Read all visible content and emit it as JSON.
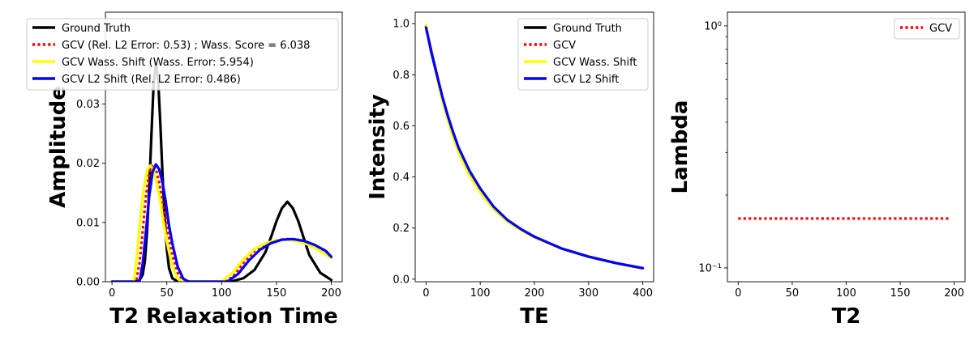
{
  "chart_data": [
    {
      "type": "line",
      "xlabel": "T2 Relaxation Time",
      "ylabel": "Amplitude",
      "xlim": [
        -6,
        210
      ],
      "ylim": [
        0,
        0.0455
      ],
      "xticks": [
        0,
        50,
        100,
        150,
        200
      ],
      "yticks": [
        0.0,
        0.01,
        0.02,
        0.03
      ],
      "ytick_labels": [
        "0.00",
        "0.01",
        "0.02",
        "0.03"
      ],
      "legend_position": "top-left",
      "series": [
        {
          "name": "Ground Truth",
          "color": "#000000",
          "style": "solid",
          "x": [
            0,
            20,
            25,
            28,
            30,
            32,
            34,
            36,
            38,
            40,
            42,
            44,
            46,
            48,
            50,
            52,
            55,
            60,
            65,
            70,
            80,
            100,
            110,
            120,
            130,
            140,
            145,
            150,
            155,
            160,
            165,
            170,
            175,
            180,
            190,
            200
          ],
          "y": [
            0,
            0,
            0.0002,
            0.0012,
            0.0035,
            0.0085,
            0.016,
            0.025,
            0.0335,
            0.037,
            0.0345,
            0.027,
            0.0185,
            0.011,
            0.0055,
            0.0023,
            0.0006,
            0,
            0,
            0,
            0,
            0,
            0.0001,
            0.0006,
            0.002,
            0.005,
            0.0075,
            0.0102,
            0.0124,
            0.0135,
            0.0124,
            0.0102,
            0.0073,
            0.0045,
            0.0015,
            0.0003
          ]
        },
        {
          "name": "GCV (Rel. L2 Error: 0.53) ; Wass. Score = 6.038",
          "color": "#ff0000",
          "style": "dotted",
          "x": [
            0,
            22,
            25,
            28,
            31,
            34,
            37,
            40,
            43,
            46,
            50,
            55,
            60,
            65,
            70,
            100,
            110,
            120,
            130,
            140,
            150,
            160,
            170,
            180,
            190,
            200
          ],
          "y": [
            0,
            0,
            0.003,
            0.0085,
            0.0145,
            0.0185,
            0.0198,
            0.019,
            0.0168,
            0.0135,
            0.0095,
            0.0045,
            0.0015,
            0.0002,
            0,
            0,
            0.0007,
            0.0032,
            0.0052,
            0.0064,
            0.007,
            0.0072,
            0.007,
            0.0064,
            0.0054,
            0.0042
          ]
        },
        {
          "name": "GCV Wass. Shift (Wass. Error: 5.954)",
          "color": "#ffff00",
          "style": "solid",
          "x": [
            0,
            20,
            23,
            26,
            29,
            32,
            35,
            38,
            41,
            44,
            47,
            50,
            55,
            60,
            63,
            100,
            110,
            120,
            130,
            140,
            150,
            160,
            170,
            180,
            190,
            200
          ],
          "y": [
            0,
            0,
            0.005,
            0.011,
            0.0158,
            0.0188,
            0.0196,
            0.0188,
            0.0165,
            0.0135,
            0.01,
            0.0068,
            0.0025,
            0.0005,
            0,
            0,
            0.0015,
            0.0038,
            0.0055,
            0.0065,
            0.007,
            0.0071,
            0.0068,
            0.0062,
            0.0052,
            0.004
          ]
        },
        {
          "name": "GCV L2 Shift (Rel. L2 Error: 0.486)",
          "color": "#0000ff",
          "style": "solid",
          "x": [
            0,
            25,
            28,
            31,
            34,
            37,
            40,
            43,
            46,
            49,
            52,
            55,
            60,
            65,
            70,
            105,
            115,
            125,
            135,
            145,
            155,
            165,
            175,
            185,
            195,
            200
          ],
          "y": [
            0,
            0,
            0.003,
            0.0085,
            0.0145,
            0.0185,
            0.0198,
            0.019,
            0.0168,
            0.0135,
            0.0095,
            0.0065,
            0.0025,
            0.0005,
            0,
            0,
            0.0013,
            0.0036,
            0.0054,
            0.0065,
            0.0071,
            0.0072,
            0.0069,
            0.0062,
            0.0052,
            0.0042
          ]
        }
      ]
    },
    {
      "type": "line",
      "xlabel": "TE",
      "ylabel": "Intensity",
      "xlim": [
        -20,
        420
      ],
      "ylim": [
        -0.01,
        1.045
      ],
      "xticks": [
        0,
        100,
        200,
        300,
        400
      ],
      "yticks": [
        0.0,
        0.2,
        0.4,
        0.6,
        0.8,
        1.0
      ],
      "ytick_labels": [
        "0.0",
        "0.2",
        "0.4",
        "0.6",
        "0.8",
        "1.0"
      ],
      "legend_position": "top-right",
      "series": [
        {
          "name": "Ground Truth",
          "color": "#000000",
          "style": "solid",
          "x": [
            0,
            10,
            20,
            30,
            40,
            50,
            60,
            80,
            100,
            125,
            150,
            175,
            200,
            250,
            300,
            350,
            400
          ],
          "y": [
            0.99,
            0.89,
            0.8,
            0.71,
            0.64,
            0.57,
            0.51,
            0.42,
            0.35,
            0.28,
            0.23,
            0.195,
            0.165,
            0.12,
            0.088,
            0.063,
            0.043
          ]
        },
        {
          "name": "GCV",
          "color": "#ff0000",
          "style": "dotted",
          "x": [
            0,
            10,
            20,
            30,
            40,
            50,
            60,
            80,
            100,
            125,
            150,
            175,
            200,
            250,
            300,
            350,
            400
          ],
          "y": [
            0.99,
            0.89,
            0.8,
            0.71,
            0.64,
            0.57,
            0.51,
            0.42,
            0.35,
            0.28,
            0.23,
            0.195,
            0.165,
            0.12,
            0.088,
            0.063,
            0.043
          ]
        },
        {
          "name": "GCV Wass. Shift",
          "color": "#ffff00",
          "style": "solid",
          "x": [
            0,
            10,
            20,
            30,
            40,
            50,
            60,
            80,
            100,
            125,
            150,
            175,
            200,
            250,
            300,
            350,
            400
          ],
          "y": [
            0.995,
            0.885,
            0.79,
            0.7,
            0.625,
            0.555,
            0.495,
            0.405,
            0.34,
            0.273,
            0.226,
            0.192,
            0.163,
            0.119,
            0.087,
            0.062,
            0.042
          ]
        },
        {
          "name": "GCV L2 Shift",
          "color": "#0000ff",
          "style": "solid",
          "x": [
            0,
            10,
            20,
            30,
            40,
            50,
            60,
            80,
            100,
            125,
            150,
            175,
            200,
            250,
            300,
            350,
            400
          ],
          "y": [
            0.985,
            0.885,
            0.8,
            0.715,
            0.64,
            0.575,
            0.515,
            0.425,
            0.355,
            0.283,
            0.232,
            0.196,
            0.166,
            0.12,
            0.088,
            0.063,
            0.043
          ]
        }
      ]
    },
    {
      "type": "line",
      "xlabel": "T2",
      "ylabel": "Lambda",
      "xlim": [
        -10,
        210
      ],
      "ylim": [
        0.0877,
        1.14
      ],
      "yscale": "log",
      "xticks": [
        0,
        50,
        100,
        150,
        200
      ],
      "yticks": [
        0.1,
        1
      ],
      "ytick_labels": [
        "10⁻¹",
        "10⁰"
      ],
      "legend_position": "top-right",
      "series": [
        {
          "name": "GCV",
          "color": "#ff0000",
          "style": "dotted",
          "x": [
            0,
            195
          ],
          "y": [
            0.16,
            0.16
          ]
        }
      ]
    }
  ]
}
